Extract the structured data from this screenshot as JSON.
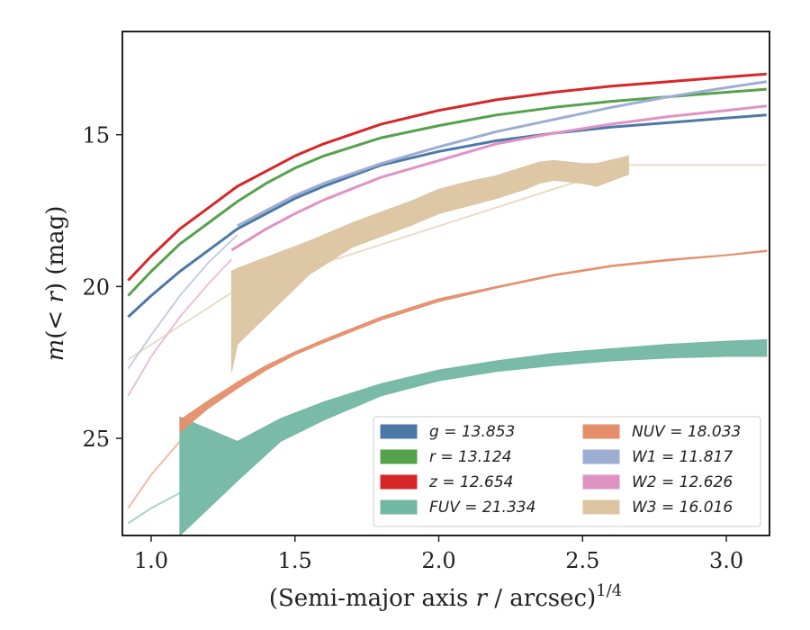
{
  "chart_data": {
    "type": "line",
    "xlabel_main": "(Semi-major axis ",
    "xlabel_var": "r",
    "xlabel_rest": " / arcsec)",
    "xlabel_sup": "1/4",
    "ylabel_pre": "m(< ",
    "ylabel_var": "r",
    "ylabel_post": ") (mag)",
    "xlim": [
      0.9,
      3.15
    ],
    "ylim": [
      28.2,
      11.6
    ],
    "xticks": [
      1.0,
      1.5,
      2.0,
      2.5,
      3.0
    ],
    "xtick_labels": [
      "1.0",
      "1.5",
      "2.0",
      "2.5",
      "3.0"
    ],
    "yticks": [
      15,
      20,
      25
    ],
    "ytick_labels": [
      "15",
      "20",
      "25"
    ],
    "legend_position": "lower-right",
    "series": [
      {
        "name": "g",
        "legend": "g = 13.853",
        "color": "#4c78a8",
        "kind": "line",
        "x": [
          0.92,
          1.0,
          1.1,
          1.2,
          1.3,
          1.4,
          1.5,
          1.6,
          1.8,
          2.0,
          2.2,
          2.4,
          2.6,
          2.8,
          3.0,
          3.14
        ],
        "y": [
          21.0,
          20.3,
          19.5,
          18.8,
          18.1,
          17.6,
          17.1,
          16.7,
          16.0,
          15.55,
          15.2,
          14.95,
          14.75,
          14.6,
          14.45,
          14.35
        ]
      },
      {
        "name": "r",
        "legend": "r = 13.124",
        "color": "#54a24b",
        "kind": "line",
        "x": [
          0.92,
          1.0,
          1.1,
          1.2,
          1.3,
          1.4,
          1.5,
          1.6,
          1.8,
          2.0,
          2.2,
          2.4,
          2.6,
          2.8,
          3.0,
          3.14
        ],
        "y": [
          20.3,
          19.5,
          18.6,
          17.9,
          17.2,
          16.6,
          16.1,
          15.7,
          15.1,
          14.7,
          14.35,
          14.1,
          13.9,
          13.75,
          13.6,
          13.5
        ]
      },
      {
        "name": "z",
        "legend": "z = 12.654",
        "color": "#d62728",
        "kind": "line",
        "x": [
          0.92,
          1.0,
          1.1,
          1.2,
          1.3,
          1.4,
          1.5,
          1.6,
          1.8,
          2.0,
          2.2,
          2.4,
          2.6,
          2.8,
          3.0,
          3.14
        ],
        "y": [
          19.8,
          19.0,
          18.1,
          17.4,
          16.7,
          16.2,
          15.7,
          15.3,
          14.65,
          14.2,
          13.85,
          13.6,
          13.4,
          13.25,
          13.1,
          13.0
        ]
      },
      {
        "name": "FUV",
        "legend": "FUV = 21.334",
        "color": "#72b7a1",
        "kind": "band",
        "x": [
          1.1,
          1.3,
          1.45,
          1.6,
          1.8,
          2.0,
          2.2,
          2.4,
          2.6,
          2.8,
          3.0,
          3.14
        ],
        "ylow": [
          24.3,
          25.1,
          24.35,
          23.8,
          23.2,
          22.75,
          22.45,
          22.2,
          22.05,
          21.9,
          21.8,
          21.75
        ],
        "yhigh": [
          28.2,
          26.4,
          25.1,
          24.4,
          23.6,
          23.1,
          22.8,
          22.6,
          22.45,
          22.35,
          22.3,
          22.3
        ],
        "faint_x": [
          0.92,
          1.0,
          1.1
        ],
        "faint_y": [
          27.8,
          27.3,
          26.8
        ]
      },
      {
        "name": "NUV",
        "legend": "NUV = 18.033",
        "color": "#e58e6a",
        "kind": "band",
        "x": [
          1.1,
          1.2,
          1.3,
          1.4,
          1.5,
          1.6,
          1.8,
          2.0,
          2.2,
          2.4,
          2.6,
          2.8,
          3.0,
          3.14
        ],
        "ylow": [
          24.4,
          23.75,
          23.15,
          22.6,
          22.15,
          21.75,
          21.0,
          20.4,
          20.0,
          19.6,
          19.3,
          19.1,
          18.95,
          18.8
        ],
        "yhigh": [
          24.8,
          24.0,
          23.35,
          22.75,
          22.25,
          21.85,
          21.1,
          20.5,
          20.05,
          19.65,
          19.35,
          19.15,
          18.98,
          18.85
        ],
        "faint_x": [
          0.92,
          1.0,
          1.1
        ],
        "faint_y": [
          27.3,
          26.2,
          25.1
        ]
      },
      {
        "name": "W1",
        "legend": "W1 = 11.817",
        "color": "#9caed1",
        "kind": "line",
        "x": [
          1.3,
          1.4,
          1.5,
          1.6,
          1.8,
          2.0,
          2.2,
          2.4,
          2.6,
          2.8,
          3.0,
          3.14
        ],
        "y": [
          18.0,
          17.5,
          17.0,
          16.6,
          15.95,
          15.4,
          14.9,
          14.5,
          14.1,
          13.75,
          13.45,
          13.25
        ],
        "faint_x": [
          0.92,
          1.0,
          1.1,
          1.2,
          1.3
        ],
        "faint_y": [
          22.7,
          21.6,
          20.3,
          19.2,
          18.3
        ]
      },
      {
        "name": "W2",
        "legend": "W2 = 12.626",
        "color": "#de93c3",
        "kind": "line",
        "x": [
          1.28,
          1.4,
          1.5,
          1.6,
          1.8,
          2.0,
          2.2,
          2.4,
          2.6,
          2.8,
          3.0,
          3.14
        ],
        "y": [
          18.8,
          18.1,
          17.6,
          17.15,
          16.4,
          15.85,
          15.3,
          14.95,
          14.65,
          14.4,
          14.2,
          14.05
        ],
        "faint_x": [
          0.92,
          1.0,
          1.1,
          1.2,
          1.28
        ],
        "faint_y": [
          23.6,
          22.3,
          21.0,
          19.9,
          19.1
        ]
      },
      {
        "name": "W3",
        "legend": "W3 = 16.016",
        "color": "#dcc4a0",
        "kind": "band",
        "x": [
          1.28,
          1.3,
          1.55,
          1.7,
          1.9,
          2.0,
          2.1,
          2.2,
          2.3,
          2.35,
          2.4,
          2.5,
          2.55,
          2.66
        ],
        "ylow": [
          19.5,
          19.4,
          18.5,
          17.9,
          17.2,
          16.8,
          16.55,
          16.35,
          16.05,
          15.9,
          15.85,
          15.95,
          15.95,
          15.7
        ],
        "yhigh": [
          22.8,
          21.9,
          19.6,
          18.7,
          18.0,
          17.6,
          17.35,
          17.1,
          16.8,
          16.6,
          16.5,
          16.6,
          16.7,
          16.3
        ],
        "faint_x": [
          0.92,
          1.1,
          1.28,
          2.66,
          3.14
        ],
        "faint_y": [
          22.4,
          21.3,
          20.2,
          16.0,
          16.0
        ]
      }
    ]
  }
}
